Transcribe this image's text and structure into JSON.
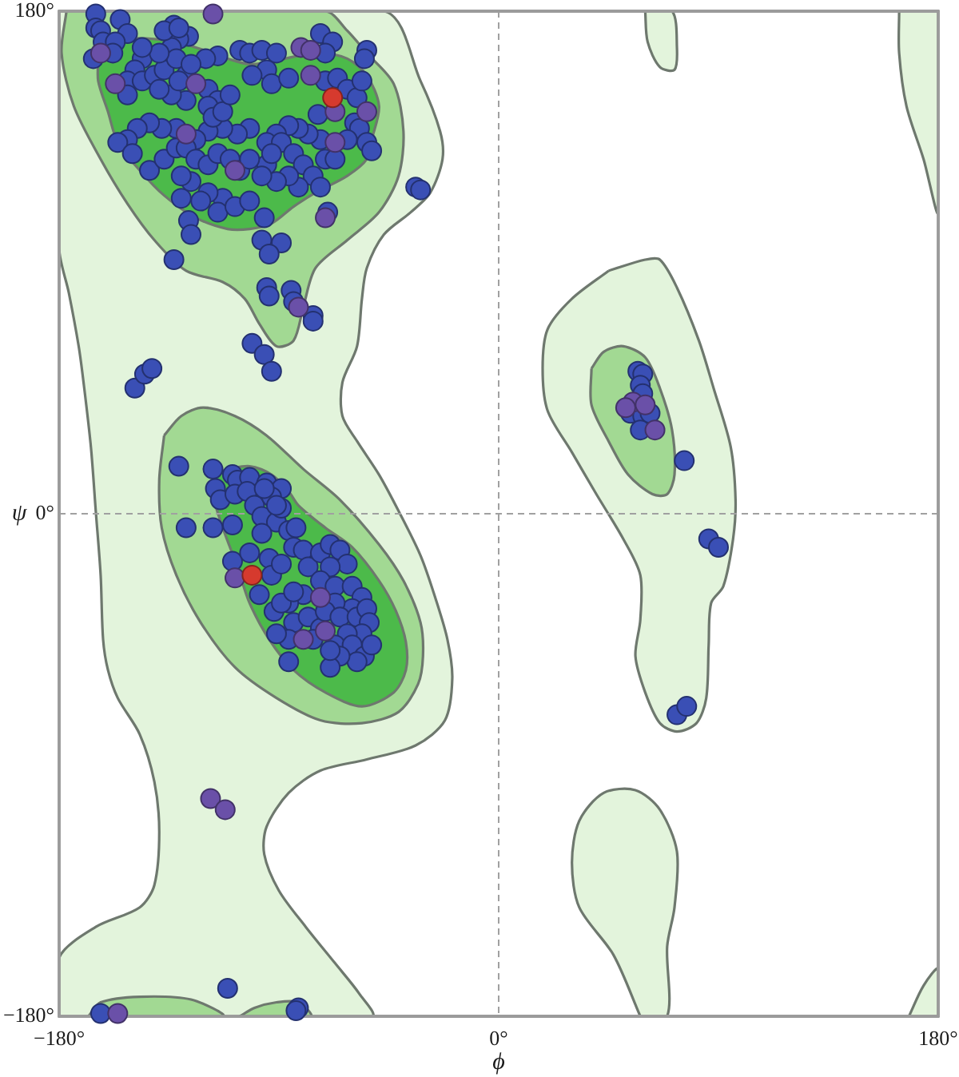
{
  "chart_data": {
    "type": "scatter",
    "xlabel": "ϕ",
    "ylabel": "ψ",
    "xlim": [
      -180,
      180
    ],
    "ylim": [
      -180,
      180
    ],
    "xticks": [
      {
        "value": -180,
        "label": "−180°"
      },
      {
        "value": 0,
        "label": "0°"
      },
      {
        "value": 180,
        "label": "180°"
      }
    ],
    "yticks": [
      {
        "value": -180,
        "label": "−180°"
      },
      {
        "value": 0,
        "label": "0°"
      },
      {
        "value": 180,
        "label": "180°"
      }
    ],
    "grid": true,
    "series": [
      {
        "type": "area",
        "color": "#e3f4dc",
        "x": [
          -180,
          -47,
          -32,
          -24,
          -23,
          -28,
          -36,
          -47,
          -54,
          -56,
          -58,
          -64,
          -64,
          -58,
          -49,
          -41,
          -32,
          -26,
          -21,
          -19,
          -22,
          -34,
          -54,
          -73,
          -86,
          -95,
          -96,
          -90,
          -79,
          -67,
          -57,
          -52,
          -180,
          -180,
          -165,
          -147,
          -141,
          -139,
          -141,
          -147,
          -156,
          -160,
          -162,
          -163,
          -165,
          -167,
          -170,
          -172,
          -176,
          -180
        ],
        "values": [
          180,
          180,
          155,
          137,
          127,
          115,
          108,
          100,
          88,
          77,
          60,
          47,
          35,
          26,
          14,
          1,
          -15,
          -30,
          -45,
          -59,
          -74,
          -83,
          -88,
          -92,
          -100,
          -112,
          -122,
          -135,
          -148,
          -161,
          -172,
          -180,
          -180,
          -159,
          -148,
          -141,
          -133,
          -114,
          -96,
          -79,
          -66,
          -56,
          -45,
          -22,
          1,
          24,
          47,
          60,
          79,
          95
        ]
      },
      {
        "type": "area",
        "color": "#e3f4dc",
        "x": [
          45,
          60,
          66,
          73,
          82,
          88,
          95,
          97,
          96,
          92,
          87,
          86,
          85,
          81,
          73,
          66,
          60,
          56,
          58,
          58,
          51,
          40,
          30,
          20,
          18,
          20,
          30
        ],
        "values": [
          87,
          91,
          91,
          81,
          62,
          45,
          24,
          5,
          -9,
          -26,
          -32,
          -47,
          -66,
          -75,
          -78,
          -75,
          -64,
          -51,
          -38,
          -22,
          -9,
          7,
          22,
          37,
          52,
          66,
          77
        ]
      },
      {
        "type": "area",
        "color": "#e3f4dc",
        "x": [
          60,
          61,
          66,
          72,
          73,
          71
        ],
        "values": [
          180,
          169,
          160,
          159,
          167,
          180
        ]
      },
      {
        "type": "area",
        "color": "#e3f4dc",
        "x": [
          58,
          47,
          33,
          30,
          33,
          43,
          56,
          66,
          73,
          72,
          69,
          69
        ],
        "values": [
          -180,
          -158,
          -141,
          -125,
          -110,
          -100,
          -99,
          -106,
          -121,
          -141,
          -155,
          -180
        ]
      },
      {
        "type": "area",
        "color": "#e3f4dc",
        "x": [
          164,
          180,
          180,
          174,
          167,
          164
        ],
        "values": [
          180,
          180,
          108,
          127,
          146,
          165
        ]
      },
      {
        "type": "area",
        "color": "#e3f4dc",
        "x": [
          168,
          174,
          180,
          180
        ],
        "values": [
          -180,
          -169,
          -163,
          -180
        ]
      },
      {
        "type": "area",
        "color": "#a2d993",
        "x": [
          -177,
          -71,
          -62,
          -54,
          -43,
          -39,
          -41,
          -49,
          -62,
          -75,
          -80,
          -84,
          -91,
          -98,
          -104,
          -113,
          -128,
          -141,
          -152,
          -163,
          -174,
          -179
        ],
        "values": [
          180,
          180,
          173,
          165,
          154,
          137,
          121,
          108,
          98,
          88,
          74,
          62,
          60,
          68,
          77,
          83,
          87,
          98,
          111,
          127,
          146,
          165
        ]
      },
      {
        "type": "area",
        "color": "#a2d993",
        "x": [
          -137,
          -130,
          -121,
          -108,
          -95,
          -80,
          -65,
          -49,
          -39,
          -32,
          -31,
          -33,
          -41,
          -56,
          -73,
          -91,
          -108,
          -122,
          -132,
          -138,
          -139
        ],
        "values": [
          28,
          35,
          38,
          35,
          28,
          16,
          5,
          -11,
          -24,
          -39,
          -51,
          -61,
          -71,
          -75,
          -74,
          -66,
          -55,
          -39,
          -22,
          -5,
          12
        ]
      },
      {
        "type": "area",
        "color": "#a2d993",
        "x": [
          38,
          43,
          51,
          60,
          66,
          71,
          72,
          69,
          63,
          53,
          45,
          38
        ],
        "values": [
          52,
          58,
          60,
          56,
          45,
          30,
          14,
          7,
          7,
          14,
          26,
          39
        ]
      },
      {
        "type": "area",
        "color": "#a2d993",
        "x": [
          -168,
          -163,
          -147,
          -126,
          -113
        ],
        "values": [
          -180,
          -175,
          -173,
          -174,
          -180
        ]
      },
      {
        "type": "area",
        "color": "#a2d993",
        "x": [
          -106,
          -100,
          -91,
          -82,
          -77
        ],
        "values": [
          -180,
          -177,
          -175,
          -175,
          -180
        ]
      },
      {
        "type": "area",
        "color": "#4cba4a",
        "x": [
          -164,
          -160,
          -152,
          -141,
          -128,
          -117,
          -111,
          -102,
          -93,
          -82,
          -73,
          -62,
          -54,
          -49,
          -52,
          -54,
          -62,
          -75,
          -84,
          -93,
          -102,
          -111,
          -124,
          -137,
          -147,
          -156,
          -160,
          -164
        ],
        "values": [
          163,
          167,
          170,
          170,
          168,
          165,
          163,
          161,
          162,
          164,
          165,
          163,
          157,
          146,
          134,
          127,
          121,
          115,
          110,
          104,
          102,
          102,
          106,
          114,
          123,
          133,
          144,
          155
        ]
      },
      {
        "type": "area",
        "color": "#4cba4a",
        "x": [
          -111,
          -102,
          -93,
          -86,
          -82,
          -71,
          -60,
          -49,
          -42,
          -38,
          -38,
          -43,
          -56,
          -71,
          -84,
          -94,
          -102,
          -107,
          -113,
          -117,
          -116
        ],
        "values": [
          16,
          17,
          14,
          8,
          3,
          -5,
          -12,
          -24,
          -35,
          -46,
          -56,
          -64,
          -69,
          -64,
          -56,
          -45,
          -32,
          -19,
          -5,
          7,
          14
        ]
      },
      {
        "type": "scatter",
        "marker": "circle",
        "color": "#3a4fb5",
        "x": [
          -165,
          -165,
          -163,
          -155,
          -152,
          -162,
          -157,
          -166,
          -158,
          -133,
          -127,
          -131,
          -134,
          -146,
          -149,
          -152,
          -146,
          -141,
          -137,
          -132,
          -128,
          -119,
          -115,
          -120,
          -106,
          -102,
          -97,
          -91,
          -95,
          -101,
          -93,
          -86,
          -73,
          -68,
          -71,
          -54,
          -55,
          -71,
          -66,
          -62,
          -58,
          -56,
          -74,
          -59,
          -57,
          -54,
          -52,
          -62,
          -73,
          -78,
          -82,
          -86,
          -91,
          -95,
          -89,
          -84,
          -80,
          -76,
          -71,
          -67,
          -73,
          -82,
          -86,
          -91,
          -95,
          -93,
          -102,
          -107,
          -113,
          -119,
          -124,
          -132,
          -138,
          -143,
          -148,
          -152,
          -156,
          -150,
          -143,
          -137,
          -132,
          -128,
          -124,
          -119,
          -115,
          -110,
          -106,
          -102,
          -97,
          -113,
          -119,
          -126,
          -130,
          -130,
          -122,
          -115,
          -108,
          -102,
          -96,
          -127,
          -126,
          -97,
          -89,
          -94,
          -133,
          -95,
          -94,
          -85,
          -84,
          -76,
          -76,
          -101,
          -96,
          -93,
          -34,
          -32,
          -70,
          -115,
          -119,
          -117,
          -113,
          -110,
          -128,
          -134,
          -139,
          -152,
          -131,
          -126,
          -139,
          -146,
          -137,
          -131,
          -149,
          -145,
          -142,
          -131,
          -128,
          -117,
          -117,
          -116,
          -114,
          -109,
          -107,
          -102,
          -108,
          -103,
          -100,
          -95,
          -89,
          -93,
          -97,
          -91,
          -89,
          -86,
          -83,
          -109,
          -109,
          -102,
          -94,
          -98,
          -93,
          -89,
          -84,
          -80,
          -78,
          -73,
          -69,
          -65,
          -62,
          -69,
          -73,
          -67,
          -60,
          -56,
          -60,
          -67,
          -80,
          -86,
          -92,
          -84,
          -78,
          -73,
          -71,
          -65,
          -58,
          -54,
          -53,
          -56,
          -62,
          -67,
          -60,
          -55,
          -52,
          -58,
          -65,
          -69,
          -76,
          -86,
          -91,
          -86,
          -69,
          -89,
          -84,
          -96,
          -91,
          -97,
          -111,
          -163,
          -82,
          -83,
          76,
          86,
          90,
          73,
          77,
          57,
          59,
          58,
          59,
          54,
          59,
          62,
          58
        ],
        "values": [
          179,
          174,
          173,
          177,
          172,
          169,
          169,
          163,
          165,
          175,
          171,
          170,
          167,
          163,
          159,
          155,
          155,
          157,
          159,
          163,
          157,
          152,
          164,
          163,
          166,
          165,
          166,
          165,
          159,
          157,
          154,
          156,
          172,
          169,
          165,
          166,
          163,
          155,
          156,
          152,
          149,
          155,
          143,
          140,
          138,
          133,
          130,
          134,
          134,
          136,
          138,
          139,
          136,
          133,
          133,
          129,
          125,
          121,
          127,
          127,
          117,
          117,
          121,
          119,
          125,
          129,
          138,
          136,
          138,
          137,
          134,
          138,
          138,
          140,
          138,
          134,
          133,
          129,
          123,
          127,
          131,
          131,
          127,
          125,
          129,
          127,
          123,
          127,
          121,
          113,
          115,
          119,
          121,
          113,
          112,
          108,
          110,
          112,
          106,
          105,
          100,
          98,
          97,
          93,
          91,
          81,
          78,
          80,
          76,
          71,
          69,
          61,
          57,
          51,
          117,
          116,
          108,
          148,
          146,
          142,
          144,
          150,
          148,
          150,
          152,
          150,
          155,
          161,
          165,
          167,
          173,
          174,
          45,
          50,
          52,
          17,
          -5,
          -5,
          16,
          9,
          5,
          14,
          12,
          13,
          7,
          8,
          3,
          11,
          9,
          6,
          -1,
          -3,
          2,
          -6,
          -5,
          -4,
          -17,
          -14,
          -16,
          -29,
          -22,
          -18,
          -12,
          -13,
          -19,
          -14,
          -11,
          -13,
          -18,
          -19,
          -24,
          -26,
          -26,
          -30,
          -34,
          -32,
          -29,
          -32,
          -35,
          -39,
          -37,
          -41,
          -35,
          -37,
          -37,
          -34,
          -39,
          -43,
          -43,
          -47,
          -47,
          -51,
          -47,
          -53,
          -51,
          -55,
          -45,
          -45,
          -43,
          -53,
          -49,
          -32,
          -28,
          9,
          3,
          -7,
          -170,
          -179,
          -177,
          -178,
          19,
          -9,
          -12,
          -72,
          -69,
          51,
          50,
          46,
          43,
          36,
          35,
          36,
          30
        ]
      },
      {
        "type": "scatter",
        "marker": "circle",
        "color": "#6a50a8",
        "x": [
          -117,
          -163,
          -157,
          -124,
          -81,
          -77,
          -77,
          -67,
          -54,
          -67,
          -128,
          -108,
          -82,
          -71,
          -108,
          -71,
          -73,
          -80,
          55,
          52,
          64,
          60,
          -118,
          -112,
          -156
        ],
        "values": [
          179,
          165,
          154,
          154,
          167,
          166,
          157,
          144,
          144,
          133,
          136,
          123,
          74,
          106,
          -23,
          -42,
          -30,
          -45,
          40,
          38,
          30,
          39,
          -102,
          -106,
          -179
        ]
      },
      {
        "type": "scatter",
        "marker": "circle",
        "color": "#d63a2e",
        "x": [
          -68,
          -101
        ],
        "values": [
          149,
          -22
        ]
      }
    ]
  }
}
